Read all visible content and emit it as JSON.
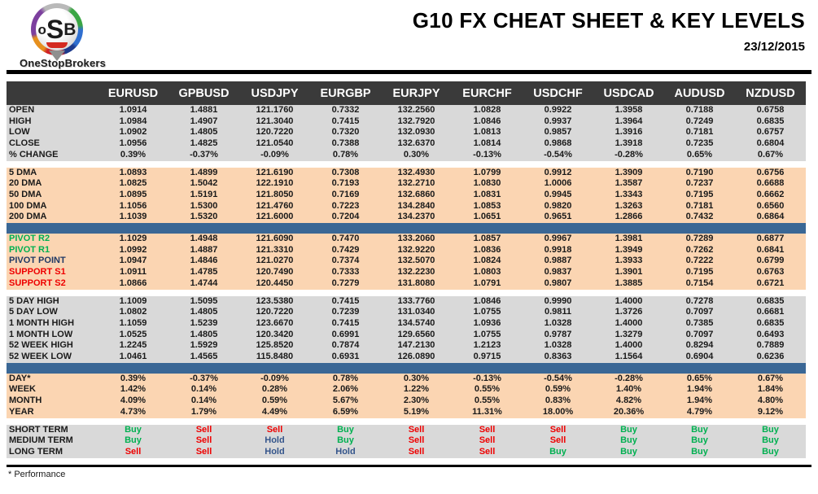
{
  "header": {
    "logo": {
      "letter_o": "o",
      "letter_s": "S",
      "letter_b": "B",
      "brand": "OneStopBrokers"
    },
    "title": "G10 FX CHEAT SHEET & KEY LEVELS",
    "date": "23/12/2015"
  },
  "footer": {
    "note": "* Performance"
  },
  "colors": {
    "header_bg": "#3a3a3a",
    "gray_row": "#d9d9d9",
    "peach_row": "#fbd5b2",
    "blue_bar": "#3a6795",
    "buy": "#00b050",
    "sell": "#ee0000",
    "hold": "#34558b",
    "green_label": "#00b050",
    "red_label": "#ee0000",
    "navy_label": "#1f3864"
  },
  "chart_data": {
    "type": "table",
    "title": "G10 FX CHEAT SHEET & KEY LEVELS",
    "date": "23/12/2015",
    "columns": [
      "EURUSD",
      "GPBUSD",
      "USDJPY",
      "EURGBP",
      "EURJPY",
      "EURCHF",
      "USDCHF",
      "USDCAD",
      "AUDUSD",
      "NZDUSD"
    ],
    "sections": [
      {
        "name": "ohlc",
        "bg": "gray",
        "after": "gap",
        "rows": [
          {
            "label": "OPEN",
            "values": [
              "1.0914",
              "1.4881",
              "121.1760",
              "0.7332",
              "132.2560",
              "1.0828",
              "0.9922",
              "1.3958",
              "0.7188",
              "0.6758"
            ]
          },
          {
            "label": "HIGH",
            "values": [
              "1.0984",
              "1.4907",
              "121.3040",
              "0.7415",
              "132.7920",
              "1.0846",
              "0.9937",
              "1.3964",
              "0.7249",
              "0.6835"
            ]
          },
          {
            "label": "LOW",
            "values": [
              "1.0902",
              "1.4805",
              "120.7220",
              "0.7320",
              "132.0930",
              "1.0813",
              "0.9857",
              "1.3916",
              "0.7181",
              "0.6757"
            ]
          },
          {
            "label": "CLOSE",
            "values": [
              "1.0956",
              "1.4825",
              "121.0540",
              "0.7388",
              "132.6370",
              "1.0814",
              "0.9868",
              "1.3918",
              "0.7235",
              "0.6804"
            ]
          },
          {
            "label": "% CHANGE",
            "values": [
              "0.39%",
              "-0.37%",
              "-0.09%",
              "0.78%",
              "0.30%",
              "-0.13%",
              "-0.54%",
              "-0.28%",
              "0.65%",
              "0.67%"
            ]
          }
        ]
      },
      {
        "name": "moving-averages",
        "bg": "peach",
        "after": "bar",
        "rows": [
          {
            "label": "5 DMA",
            "values": [
              "1.0893",
              "1.4899",
              "121.6190",
              "0.7308",
              "132.4930",
              "1.0799",
              "0.9912",
              "1.3909",
              "0.7190",
              "0.6756"
            ]
          },
          {
            "label": "20 DMA",
            "values": [
              "1.0825",
              "1.5042",
              "122.1910",
              "0.7193",
              "132.2710",
              "1.0830",
              "1.0006",
              "1.3587",
              "0.7237",
              "0.6688"
            ]
          },
          {
            "label": "50 DMA",
            "values": [
              "1.0895",
              "1.5191",
              "121.8050",
              "0.7169",
              "132.6860",
              "1.0831",
              "0.9945",
              "1.3343",
              "0.7195",
              "0.6662"
            ]
          },
          {
            "label": "100 DMA",
            "values": [
              "1.1056",
              "1.5300",
              "121.4760",
              "0.7223",
              "134.2840",
              "1.0853",
              "0.9820",
              "1.3263",
              "0.7181",
              "0.6560"
            ]
          },
          {
            "label": "200 DMA",
            "values": [
              "1.1039",
              "1.5320",
              "121.6000",
              "0.7204",
              "134.2370",
              "1.0651",
              "0.9651",
              "1.2866",
              "0.7432",
              "0.6864"
            ]
          }
        ]
      },
      {
        "name": "pivots",
        "bg": "peach",
        "after": "gap",
        "rows": [
          {
            "label": "PIVOT R2",
            "label_color": "green_label",
            "values": [
              "1.1029",
              "1.4948",
              "121.6090",
              "0.7470",
              "133.2060",
              "1.0857",
              "0.9967",
              "1.3981",
              "0.7289",
              "0.6877"
            ]
          },
          {
            "label": "PIVOT R1",
            "label_color": "green_label",
            "values": [
              "1.0992",
              "1.4887",
              "121.3310",
              "0.7429",
              "132.9220",
              "1.0836",
              "0.9918",
              "1.3949",
              "0.7262",
              "0.6841"
            ]
          },
          {
            "label": "PIVOT POINT",
            "label_color": "navy_label",
            "values": [
              "1.0947",
              "1.4846",
              "121.0270",
              "0.7374",
              "132.5070",
              "1.0824",
              "0.9887",
              "1.3933",
              "0.7222",
              "0.6799"
            ]
          },
          {
            "label": "SUPPORT S1",
            "label_color": "red_label",
            "values": [
              "1.0911",
              "1.4785",
              "120.7490",
              "0.7333",
              "132.2230",
              "1.0803",
              "0.9837",
              "1.3901",
              "0.7195",
              "0.6763"
            ]
          },
          {
            "label": "SUPPORT S2",
            "label_color": "red_label",
            "values": [
              "1.0866",
              "1.4744",
              "120.4450",
              "0.7279",
              "131.8080",
              "1.0791",
              "0.9807",
              "1.3885",
              "0.7154",
              "0.6721"
            ]
          }
        ]
      },
      {
        "name": "ranges",
        "bg": "gray",
        "after": "bar",
        "rows": [
          {
            "label": "5 DAY HIGH",
            "values": [
              "1.1009",
              "1.5095",
              "123.5380",
              "0.7415",
              "133.7760",
              "1.0846",
              "0.9990",
              "1.4000",
              "0.7278",
              "0.6835"
            ]
          },
          {
            "label": "5 DAY LOW",
            "values": [
              "1.0802",
              "1.4805",
              "120.7220",
              "0.7239",
              "131.0340",
              "1.0755",
              "0.9811",
              "1.3726",
              "0.7097",
              "0.6681"
            ]
          },
          {
            "label": "1 MONTH HIGH",
            "values": [
              "1.1059",
              "1.5239",
              "123.6670",
              "0.7415",
              "134.5740",
              "1.0936",
              "1.0328",
              "1.4000",
              "0.7385",
              "0.6835"
            ]
          },
          {
            "label": "1 MONTH LOW",
            "values": [
              "1.0525",
              "1.4805",
              "120.3420",
              "0.6991",
              "129.6560",
              "1.0755",
              "0.9787",
              "1.3279",
              "0.7097",
              "0.6493"
            ]
          },
          {
            "label": "52 WEEK HIGH",
            "values": [
              "1.2245",
              "1.5929",
              "125.8520",
              "0.7874",
              "147.2130",
              "1.2123",
              "1.0328",
              "1.4000",
              "0.8294",
              "0.7889"
            ]
          },
          {
            "label": "52 WEEK LOW",
            "values": [
              "1.0461",
              "1.4565",
              "115.8480",
              "0.6931",
              "126.0890",
              "0.9715",
              "0.8363",
              "1.1564",
              "0.6904",
              "0.6236"
            ]
          }
        ]
      },
      {
        "name": "performance",
        "bg": "peach",
        "after": "gap",
        "rows": [
          {
            "label": "DAY*",
            "values": [
              "0.39%",
              "-0.37%",
              "-0.09%",
              "0.78%",
              "0.30%",
              "-0.13%",
              "-0.54%",
              "-0.28%",
              "0.65%",
              "0.67%"
            ]
          },
          {
            "label": "WEEK",
            "values": [
              "1.42%",
              "0.14%",
              "0.28%",
              "2.06%",
              "1.22%",
              "0.55%",
              "0.59%",
              "1.40%",
              "1.94%",
              "1.84%"
            ]
          },
          {
            "label": "MONTH",
            "values": [
              "4.09%",
              "0.14%",
              "0.59%",
              "5.67%",
              "2.30%",
              "0.55%",
              "0.83%",
              "4.82%",
              "1.94%",
              "4.80%"
            ]
          },
          {
            "label": "YEAR",
            "values": [
              "4.73%",
              "1.79%",
              "4.49%",
              "6.59%",
              "5.19%",
              "11.31%",
              "18.00%",
              "20.36%",
              "4.79%",
              "9.12%"
            ]
          }
        ]
      },
      {
        "name": "signals",
        "bg": "gray",
        "after": null,
        "signals": true,
        "rows": [
          {
            "label": "SHORT TERM",
            "values": [
              "Buy",
              "Sell",
              "Sell",
              "Buy",
              "Sell",
              "Sell",
              "Sell",
              "Buy",
              "Buy",
              "Buy"
            ]
          },
          {
            "label": "MEDIUM TERM",
            "values": [
              "Buy",
              "Sell",
              "Hold",
              "Buy",
              "Sell",
              "Sell",
              "Sell",
              "Buy",
              "Buy",
              "Buy"
            ]
          },
          {
            "label": "LONG TERM",
            "values": [
              "Sell",
              "Sell",
              "Hold",
              "Hold",
              "Sell",
              "Sell",
              "Buy",
              "Buy",
              "Buy",
              "Buy"
            ]
          }
        ]
      }
    ]
  }
}
